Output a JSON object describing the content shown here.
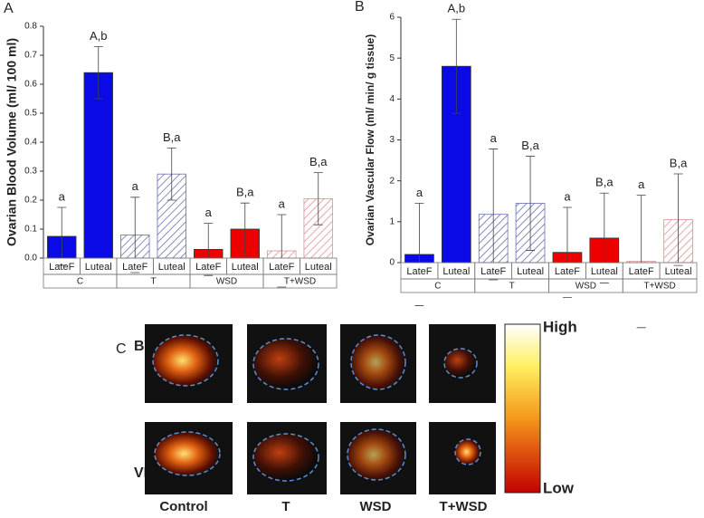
{
  "chart_data": [
    {
      "type": "bar",
      "panel": "A",
      "y_label": "Ovarian Blood Volume (ml/ 100 ml)",
      "categories": [
        "LateF",
        "Luteal",
        "LateF",
        "Luteal",
        "LateF",
        "Luteal",
        "LateF",
        "Luteal"
      ],
      "groups": [
        "C",
        "T",
        "WSD",
        "T+WSD"
      ],
      "values": [
        0.075,
        0.64,
        0.08,
        0.29,
        0.03,
        0.1,
        0.025,
        0.205
      ],
      "errors": [
        0.1,
        0.09,
        0.13,
        0.09,
        0.09,
        0.09,
        0.125,
        0.09
      ],
      "annotations": [
        "a",
        "A,b",
        "a",
        "B,a",
        "a",
        "B,a",
        "a",
        "B,a"
      ],
      "colors": [
        "#0a0ae6",
        "#0a0ae6",
        "#6670b0",
        "#6670b0",
        "#ee0000",
        "#ee0000",
        "#e09090",
        "#e09090"
      ],
      "hatched": [
        false,
        false,
        true,
        true,
        false,
        false,
        true,
        true
      ],
      "ylim": [
        0,
        0.8
      ],
      "yticks": [
        {
          "value": 0,
          "label": "0.0"
        },
        0.1,
        0.2,
        0.3,
        0.4,
        0.5,
        0.6,
        0.7,
        0.8
      ]
    },
    {
      "type": "bar",
      "panel": "B",
      "y_label": "Ovarian Vascular Flow (ml/ min/ g tissue)",
      "categories": [
        "LateF",
        "Luteal",
        "LateF",
        "Luteal",
        "LateF",
        "Luteal",
        "LateF",
        "Luteal"
      ],
      "groups": [
        "C",
        "T",
        "WSD",
        "T+WSD"
      ],
      "values": [
        0.2,
        4.8,
        1.18,
        1.45,
        0.25,
        0.6,
        0.03,
        1.05
      ],
      "errors": [
        1.25,
        1.15,
        1.6,
        1.15,
        1.1,
        1.1,
        1.62,
        1.12
      ],
      "annotations": [
        "a",
        "A,b",
        "a",
        "B,a",
        "a",
        "B,a",
        "a",
        "B,a"
      ],
      "colors": [
        "#0a0ae6",
        "#0a0ae6",
        "#6670b0",
        "#6670b0",
        "#ee0000",
        "#ee0000",
        "#e09090",
        "#e09090"
      ],
      "hatched": [
        false,
        false,
        true,
        true,
        false,
        false,
        true,
        true
      ],
      "ylim": [
        0,
        6
      ],
      "yticks": [
        0,
        1,
        2,
        3,
        4,
        5,
        6
      ]
    }
  ],
  "panel_c": {
    "panel": "C",
    "rows": [
      "BV",
      "VF"
    ],
    "columns": [
      "Control",
      "T",
      "WSD",
      "T+WSD"
    ],
    "scale_high": "High",
    "scale_low": "Low"
  }
}
